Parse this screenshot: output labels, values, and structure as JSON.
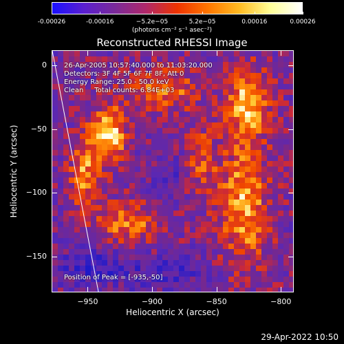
{
  "colorbar": {
    "tick_labels": [
      "-0.00026",
      "-0.00016",
      "−5.2e−05",
      "5.2e−05",
      "0.00016",
      "0.00026"
    ],
    "tick_values": [
      -0.00026,
      -0.00016,
      -5.2e-05,
      5.2e-05,
      0.00016,
      0.00026
    ],
    "range": [
      -0.00026,
      0.00026
    ],
    "units_label": "(photons cm⁻² s⁻¹ asec⁻²)",
    "colors": [
      "#1a10ff",
      "#5a1fd0",
      "#7a2a9a",
      "#b0286a",
      "#ee3300",
      "#ff7700",
      "#ffbb22",
      "#ffff99",
      "#ffffff"
    ]
  },
  "info": {
    "time_range": "26-Apr-2005 10:57:40.000 to 11:03:20.000",
    "detectors": "Detectors: 3F 4F 5F 6F 7F 8F, Att 0",
    "energy_range": "Energy Range: 25.0 - 50.0 keV",
    "clean_counts": "Clean     Total counts: 6.84E+03",
    "peak_position": "Position of Peak = [-935,-50]"
  },
  "timestamp": "29-Apr-2022 10:50",
  "chart_data": {
    "type": "heatmap",
    "title": "Reconstructed RHESSI Image",
    "xlabel": "Heliocentric X (arcsec)",
    "ylabel": "Heliocentric Y (arcsec)",
    "xlim": [
      -978,
      -790
    ],
    "ylim": [
      -178,
      12
    ],
    "x_ticks": [
      -950,
      -900,
      -850,
      -800
    ],
    "x_tick_labels": [
      "−950",
      "−900",
      "−850",
      "−800"
    ],
    "y_ticks": [
      0,
      -50,
      -100,
      -150
    ],
    "y_tick_labels": [
      "0",
      "−50",
      "−100",
      "−150"
    ],
    "peak": {
      "x": -935,
      "y": -50
    },
    "limb_line": [
      [
        -978,
        12
      ],
      [
        -942,
        -178
      ]
    ],
    "grid": false
  }
}
